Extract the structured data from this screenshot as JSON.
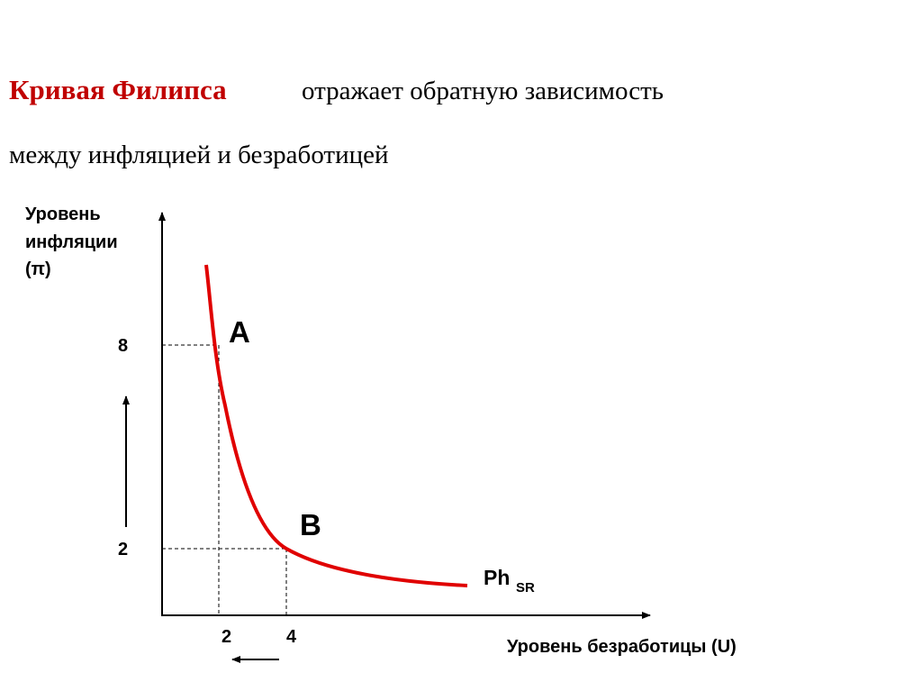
{
  "title": {
    "bold": "Кривая Филипса",
    "rest": "отражает обратную зависимость",
    "line2": "между инфляцией и безработицей"
  },
  "y_axis_label": [
    "Уровень",
    "инфляции",
    "(π)"
  ],
  "x_axis_label": "Уровень безработицы (U)",
  "y_ticks": [
    "8",
    "2"
  ],
  "x_ticks": [
    "2",
    "4"
  ],
  "points": [
    "A",
    "B"
  ],
  "curve_label": {
    "main": "Ph",
    "sub": "SR"
  }
}
